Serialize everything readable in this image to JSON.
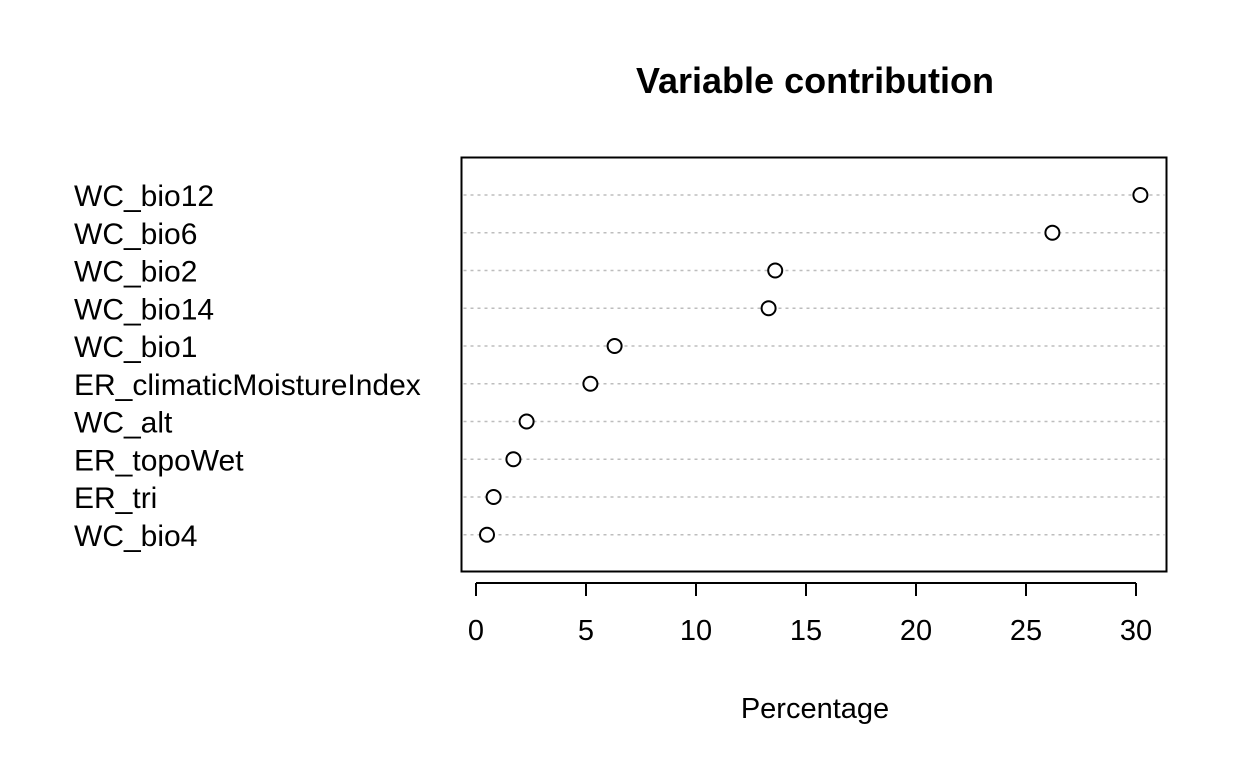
{
  "chart_data": {
    "type": "scatter",
    "subtype": "dotchart",
    "title": "Variable contribution",
    "xlabel": "Percentage",
    "ylabel": "",
    "xlim": [
      -0.6,
      31.5
    ],
    "xticks": [
      0,
      5,
      10,
      15,
      20,
      25,
      30
    ],
    "grid": "dotted horizontal guide lines",
    "marker": "open circle",
    "categories": [
      "WC_bio12",
      "WC_bio6",
      "WC_bio2",
      "WC_bio14",
      "WC_bio1",
      "ER_climaticMoistureIndex",
      "WC_alt",
      "ER_topoWet",
      "ER_tri",
      "WC_bio4"
    ],
    "values": [
      30.2,
      26.2,
      13.6,
      13.3,
      6.3,
      5.2,
      2.3,
      1.7,
      0.8,
      0.5
    ]
  }
}
